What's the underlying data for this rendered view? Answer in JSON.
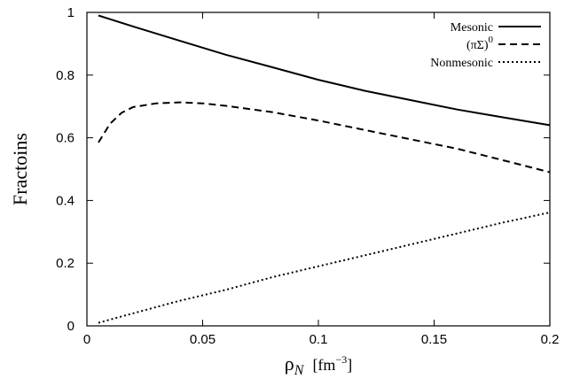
{
  "chart_data": {
    "type": "line",
    "xlabel": "ρ",
    "xlabel_sub": "N",
    "xlabel_unit": "[fm",
    "xlabel_unit_exp": "−3",
    "xlabel_unit_close": "]",
    "ylabel": "Fractoins",
    "xlim": [
      0,
      0.2
    ],
    "ylim": [
      0,
      1
    ],
    "xticks": [
      "0",
      "0.05",
      "0.1",
      "0.15",
      "0.2"
    ],
    "xtick_values": [
      0,
      0.05,
      0.1,
      0.15,
      0.2
    ],
    "yticks": [
      "0",
      "0.2",
      "0.4",
      "0.6",
      "0.8",
      "1"
    ],
    "ytick_values": [
      0,
      0.2,
      0.4,
      0.6,
      0.8,
      1.0
    ],
    "grid": false,
    "legend_placement": "top-right",
    "series": [
      {
        "name": "Mesonic",
        "style": "solid",
        "x": [
          0.005,
          0.02,
          0.04,
          0.06,
          0.08,
          0.1,
          0.12,
          0.14,
          0.16,
          0.18,
          0.2
        ],
        "y": [
          0.99,
          0.955,
          0.91,
          0.865,
          0.825,
          0.785,
          0.75,
          0.72,
          0.69,
          0.665,
          0.64
        ]
      },
      {
        "name": "(πΣ)",
        "name_sup": "0",
        "style": "dashed",
        "x": [
          0.005,
          0.01,
          0.015,
          0.02,
          0.03,
          0.04,
          0.05,
          0.06,
          0.08,
          0.1,
          0.12,
          0.14,
          0.16,
          0.18,
          0.2
        ],
        "y": [
          0.585,
          0.645,
          0.68,
          0.698,
          0.71,
          0.713,
          0.71,
          0.702,
          0.682,
          0.655,
          0.625,
          0.595,
          0.565,
          0.528,
          0.49
        ]
      },
      {
        "name": "Nonmesonic",
        "style": "dotted",
        "x": [
          0.005,
          0.02,
          0.04,
          0.06,
          0.08,
          0.1,
          0.12,
          0.14,
          0.16,
          0.18,
          0.2
        ],
        "y": [
          0.01,
          0.04,
          0.08,
          0.115,
          0.155,
          0.19,
          0.225,
          0.26,
          0.295,
          0.33,
          0.362
        ]
      }
    ]
  }
}
